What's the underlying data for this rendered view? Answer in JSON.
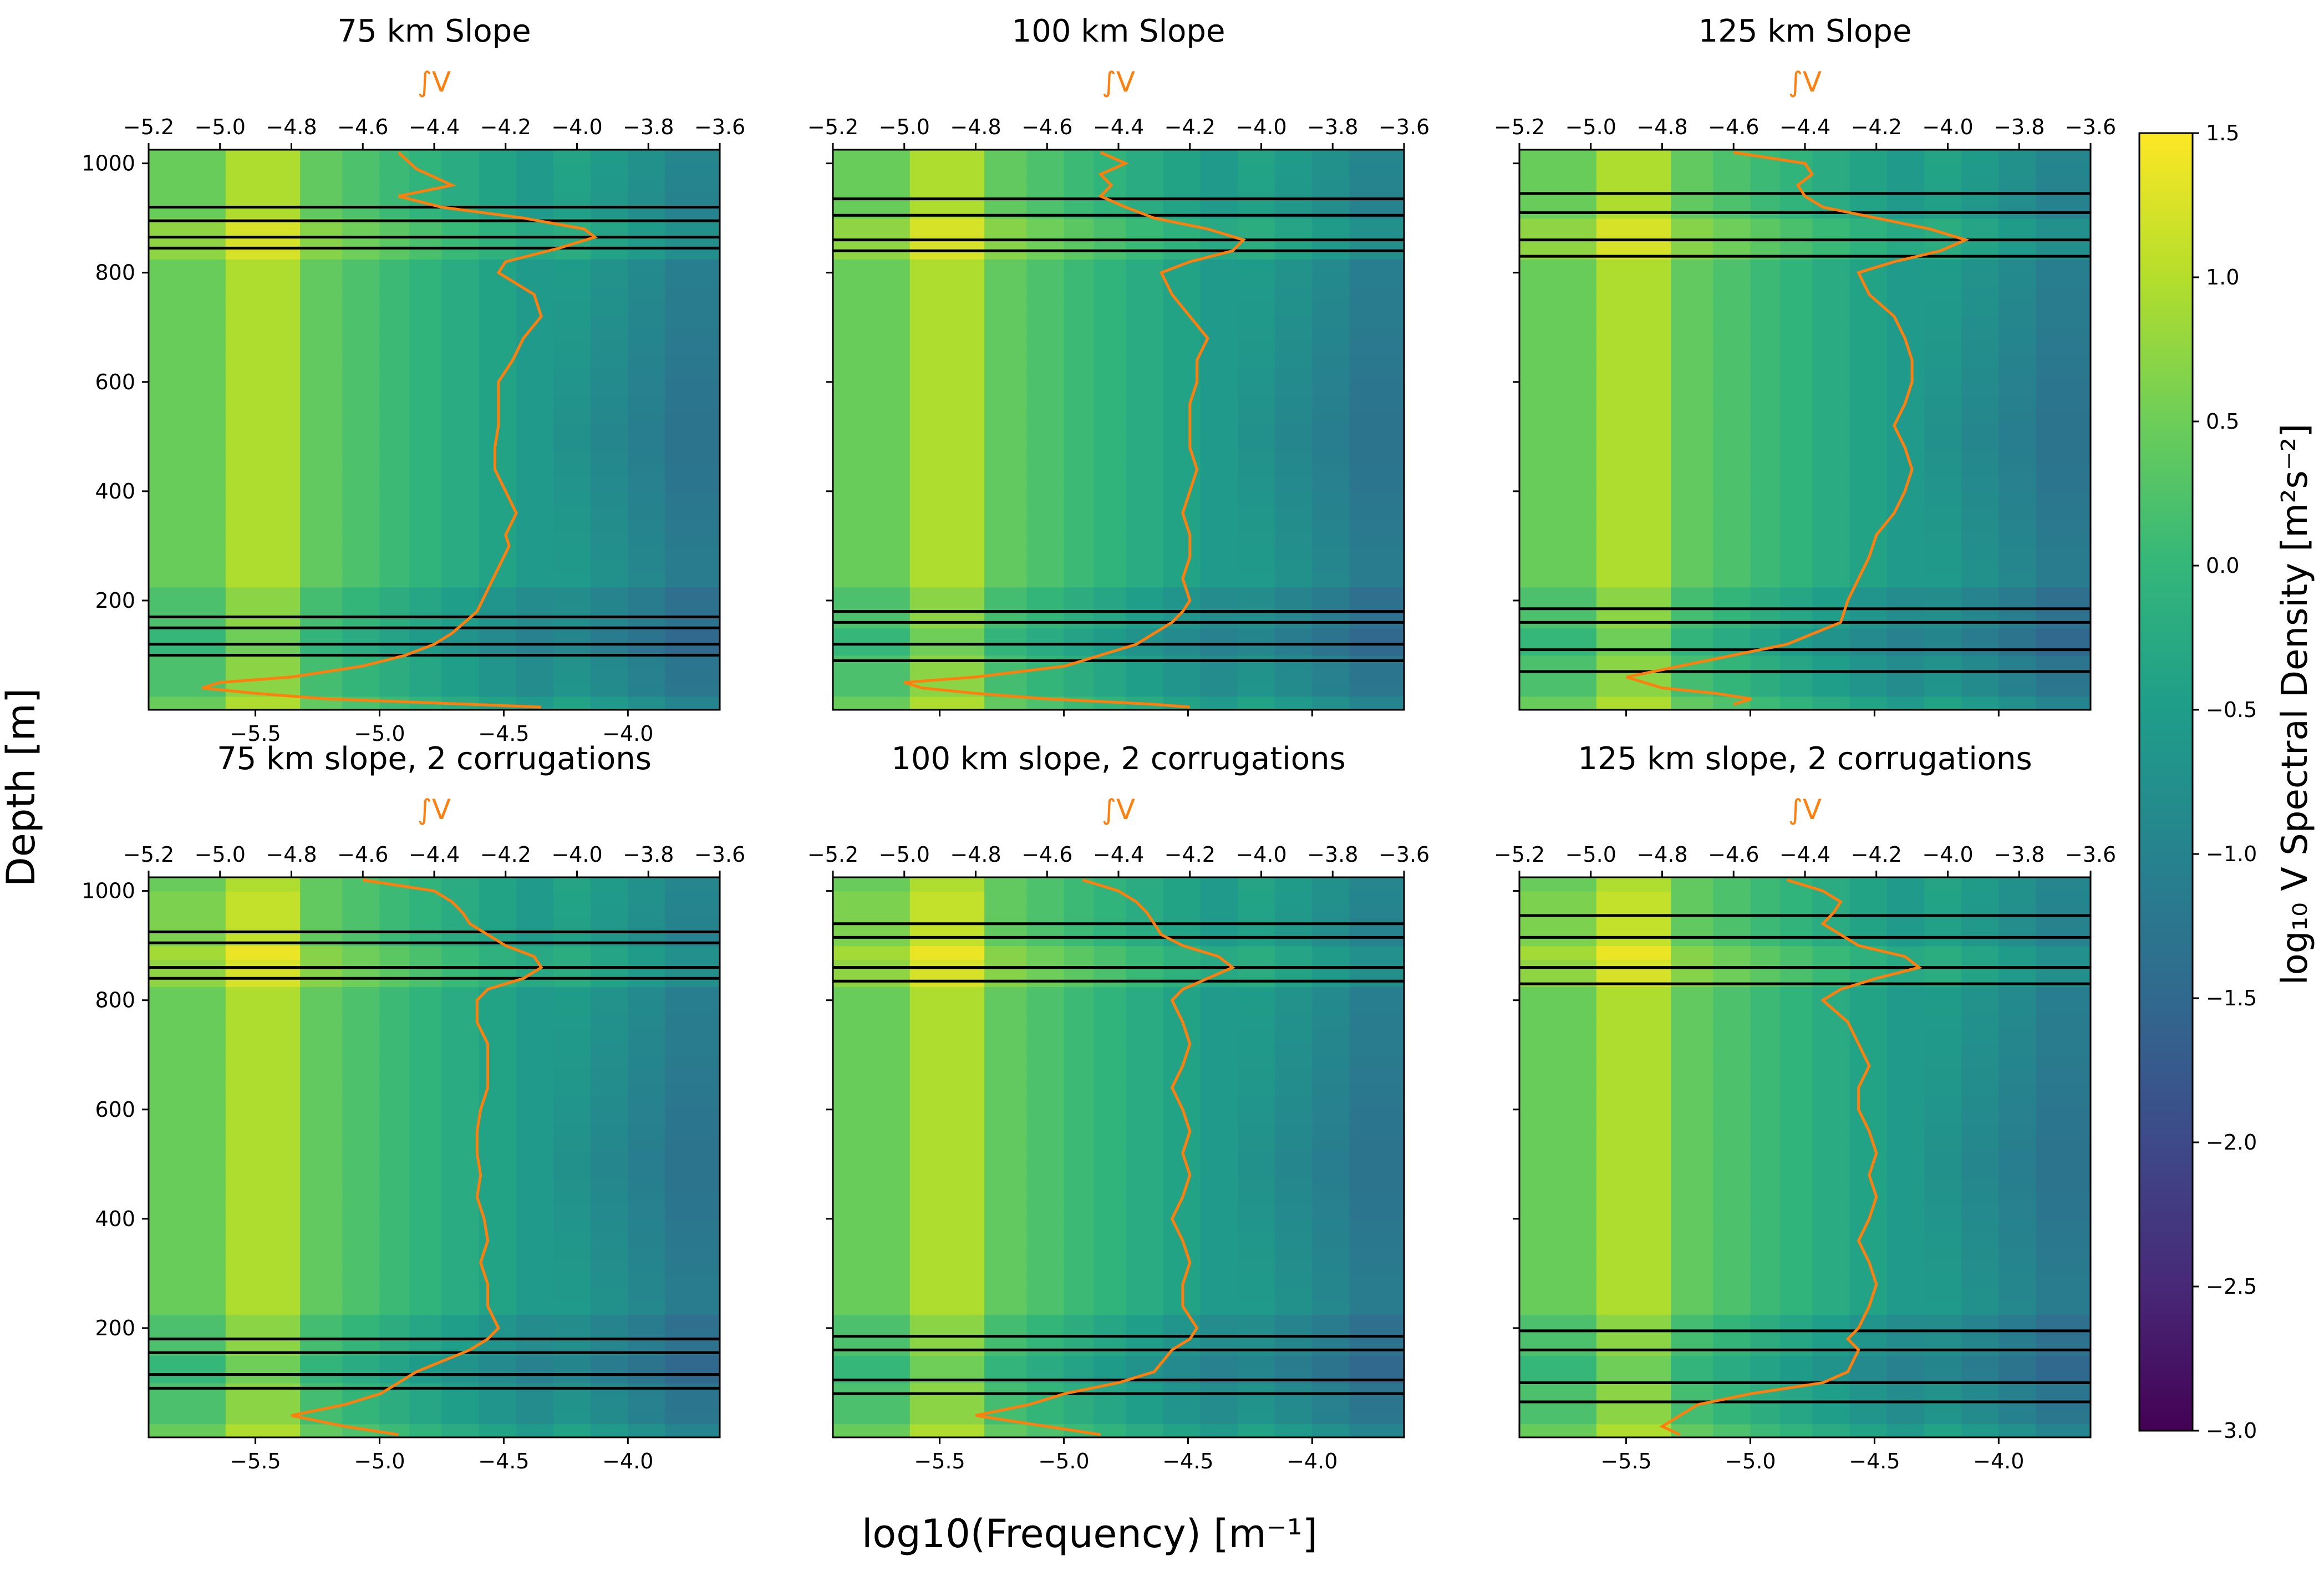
{
  "figure": {
    "ylabel": "Depth [m]",
    "xlabel": "log10(Frequency) [m⁻¹]"
  },
  "colorbar": {
    "label": "log₁₀ V Spectral Density [m²s⁻²]",
    "vmin": -3.0,
    "vmax": 1.5,
    "ticks": [
      "1.5",
      "1.0",
      "0.5",
      "0.0",
      "−0.5",
      "−1.0",
      "−1.5",
      "−2.0",
      "−2.5",
      "−3.0"
    ],
    "tick_values": [
      1.5,
      1.0,
      0.5,
      0.0,
      -0.5,
      -1.0,
      -1.5,
      -2.0,
      -2.5,
      -3.0
    ],
    "colormap": [
      "#440154",
      "#482878",
      "#3e4989",
      "#31688e",
      "#26828e",
      "#1f9e89",
      "#35b779",
      "#6ece58",
      "#b5de2b",
      "#fde725"
    ]
  },
  "chart_data": [
    {
      "type": "heatmap",
      "title": "75 km Slope",
      "top_axis_label": "∫V",
      "x_range": [
        -5.93,
        -3.63
      ],
      "y_range": [
        0,
        1025
      ],
      "top_x_range": [
        -5.2,
        -3.6
      ],
      "bottom_ticks": [
        "−5.5",
        "−5.0",
        "−4.5",
        "−4.0"
      ],
      "bottom_tick_values": [
        -5.5,
        -5.0,
        -4.5,
        -4.0
      ],
      "top_ticks": [
        "−5.2",
        "−5.0",
        "−4.8",
        "−4.6",
        "−4.4",
        "−4.2",
        "−4.0",
        "−3.8",
        "−3.6"
      ],
      "top_tick_values": [
        -5.2,
        -5.0,
        -4.8,
        -4.6,
        -4.4,
        -4.2,
        -4.0,
        -3.8,
        -3.6
      ],
      "y_ticks": [
        "1000",
        "800",
        "600",
        "400",
        "200"
      ],
      "y_tick_values": [
        1000,
        800,
        600,
        400,
        200
      ],
      "hlines": [
        920,
        895,
        865,
        845,
        170,
        150,
        120,
        100
      ],
      "integral_curve": {
        "depth": [
          1020,
          990,
          960,
          940,
          920,
          900,
          880,
          865,
          845,
          820,
          800,
          760,
          720,
          680,
          640,
          600,
          560,
          520,
          480,
          440,
          400,
          360,
          320,
          300,
          260,
          220,
          180,
          140,
          120,
          100,
          80,
          60,
          50,
          40,
          30,
          20,
          10,
          5
        ],
        "value": [
          -4.5,
          -4.45,
          -4.35,
          -4.5,
          -4.38,
          -4.15,
          -3.98,
          -3.95,
          -4.05,
          -4.2,
          -4.22,
          -4.12,
          -4.1,
          -4.15,
          -4.18,
          -4.22,
          -4.22,
          -4.22,
          -4.23,
          -4.23,
          -4.2,
          -4.17,
          -4.2,
          -4.19,
          -4.22,
          -4.25,
          -4.28,
          -4.35,
          -4.4,
          -4.48,
          -4.6,
          -4.8,
          -5.0,
          -5.05,
          -4.9,
          -4.7,
          -4.3,
          -4.1
        ]
      }
    },
    {
      "type": "heatmap",
      "title": "100 km Slope",
      "top_axis_label": "∫V",
      "x_range": [
        -5.93,
        -3.63
      ],
      "y_range": [
        0,
        1025
      ],
      "top_x_range": [
        -5.2,
        -3.6
      ],
      "bottom_ticks": [],
      "bottom_tick_values": [],
      "top_ticks": [
        "−5.2",
        "−5.0",
        "−4.8",
        "−4.6",
        "−4.4",
        "−4.2",
        "−4.0",
        "−3.8",
        "−3.6"
      ],
      "top_tick_values": [
        -5.2,
        -5.0,
        -4.8,
        -4.6,
        -4.4,
        -4.2,
        -4.0,
        -3.8,
        -3.6
      ],
      "y_ticks": [],
      "y_tick_values": [
        1000,
        800,
        600,
        400,
        200
      ],
      "hlines": [
        935,
        905,
        860,
        840,
        180,
        160,
        120,
        90
      ],
      "integral_curve": {
        "depth": [
          1020,
          1000,
          980,
          960,
          940,
          920,
          900,
          880,
          860,
          840,
          820,
          800,
          760,
          720,
          680,
          640,
          600,
          560,
          520,
          480,
          440,
          400,
          360,
          320,
          280,
          240,
          200,
          180,
          160,
          120,
          100,
          80,
          60,
          50,
          40,
          30,
          20,
          10,
          5
        ],
        "value": [
          -4.45,
          -4.38,
          -4.45,
          -4.42,
          -4.45,
          -4.38,
          -4.3,
          -4.15,
          -4.05,
          -4.08,
          -4.2,
          -4.28,
          -4.25,
          -4.2,
          -4.15,
          -4.18,
          -4.18,
          -4.2,
          -4.2,
          -4.2,
          -4.18,
          -4.2,
          -4.22,
          -4.2,
          -4.2,
          -4.22,
          -4.2,
          -4.22,
          -4.25,
          -4.35,
          -4.45,
          -4.55,
          -4.8,
          -5.0,
          -4.95,
          -4.8,
          -4.6,
          -4.3,
          -4.2
        ]
      }
    },
    {
      "type": "heatmap",
      "title": "125 km Slope",
      "top_axis_label": "∫V",
      "x_range": [
        -5.93,
        -3.63
      ],
      "y_range": [
        0,
        1025
      ],
      "top_x_range": [
        -5.2,
        -3.6
      ],
      "bottom_ticks": [],
      "bottom_tick_values": [],
      "top_ticks": [
        "−5.2",
        "−5.0",
        "−4.8",
        "−4.6",
        "−4.4",
        "−4.2",
        "−4.0",
        "−3.8",
        "−3.6"
      ],
      "top_tick_values": [
        -5.2,
        -5.0,
        -4.8,
        -4.6,
        -4.4,
        -4.2,
        -4.0,
        -3.8,
        -3.6
      ],
      "y_ticks": [],
      "y_tick_values": [
        1000,
        800,
        600,
        400,
        200
      ],
      "hlines": [
        945,
        910,
        860,
        830,
        185,
        160,
        110,
        70
      ],
      "integral_curve": {
        "depth": [
          1020,
          1000,
          980,
          960,
          940,
          920,
          900,
          880,
          860,
          840,
          820,
          800,
          760,
          720,
          680,
          640,
          600,
          560,
          520,
          480,
          440,
          400,
          360,
          320,
          280,
          240,
          200,
          160,
          120,
          100,
          80,
          60,
          40,
          30,
          20,
          10
        ],
        "value": [
          -4.6,
          -4.4,
          -4.38,
          -4.42,
          -4.4,
          -4.35,
          -4.2,
          -4.05,
          -3.95,
          -4.02,
          -4.15,
          -4.25,
          -4.22,
          -4.15,
          -4.12,
          -4.1,
          -4.1,
          -4.12,
          -4.15,
          -4.12,
          -4.1,
          -4.12,
          -4.15,
          -4.2,
          -4.22,
          -4.25,
          -4.28,
          -4.3,
          -4.45,
          -4.6,
          -4.75,
          -4.9,
          -4.8,
          -4.65,
          -4.55,
          -4.6
        ]
      }
    },
    {
      "type": "heatmap",
      "title": "75 km slope, 2 corrugations",
      "top_axis_label": "∫V",
      "x_range": [
        -5.93,
        -3.63
      ],
      "y_range": [
        0,
        1025
      ],
      "top_x_range": [
        -5.2,
        -3.6
      ],
      "bottom_ticks": [
        "−5.5",
        "−5.0",
        "−4.5",
        "−4.0"
      ],
      "bottom_tick_values": [
        -5.5,
        -5.0,
        -4.5,
        -4.0
      ],
      "top_ticks": [
        "−5.2",
        "−5.0",
        "−4.8",
        "−4.6",
        "−4.4",
        "−4.2",
        "−4.0",
        "−3.8",
        "−3.6"
      ],
      "top_tick_values": [
        -5.2,
        -5.0,
        -4.8,
        -4.6,
        -4.4,
        -4.2,
        -4.0,
        -3.8,
        -3.6
      ],
      "y_ticks": [
        "1000",
        "800",
        "600",
        "400",
        "200"
      ],
      "y_tick_values": [
        1000,
        800,
        600,
        400,
        200
      ],
      "hlines": [
        925,
        905,
        860,
        840,
        180,
        155,
        115,
        90
      ],
      "integral_curve": {
        "depth": [
          1020,
          1000,
          980,
          960,
          940,
          920,
          900,
          880,
          860,
          840,
          820,
          800,
          760,
          720,
          680,
          640,
          600,
          560,
          520,
          480,
          440,
          400,
          360,
          320,
          280,
          240,
          200,
          180,
          160,
          120,
          100,
          80,
          60,
          40,
          20,
          5
        ],
        "value": [
          -4.6,
          -4.4,
          -4.35,
          -4.32,
          -4.3,
          -4.25,
          -4.2,
          -4.12,
          -4.1,
          -4.15,
          -4.25,
          -4.28,
          -4.28,
          -4.25,
          -4.25,
          -4.25,
          -4.27,
          -4.28,
          -4.28,
          -4.27,
          -4.28,
          -4.26,
          -4.25,
          -4.27,
          -4.25,
          -4.25,
          -4.22,
          -4.25,
          -4.3,
          -4.45,
          -4.5,
          -4.55,
          -4.65,
          -4.8,
          -4.65,
          -4.5
        ]
      }
    },
    {
      "type": "heatmap",
      "title": "100 km slope, 2 corrugations",
      "top_axis_label": "∫V",
      "x_range": [
        -5.93,
        -3.63
      ],
      "y_range": [
        0,
        1025
      ],
      "top_x_range": [
        -5.2,
        -3.6
      ],
      "bottom_ticks": [
        "−5.5",
        "−5.0",
        "−4.5",
        "−4.0"
      ],
      "bottom_tick_values": [
        -5.5,
        -5.0,
        -4.5,
        -4.0
      ],
      "top_ticks": [
        "−5.2",
        "−5.0",
        "−4.8",
        "−4.6",
        "−4.4",
        "−4.2",
        "−4.0",
        "−3.8",
        "−3.6"
      ],
      "top_tick_values": [
        -5.2,
        -5.0,
        -4.8,
        -4.6,
        -4.4,
        -4.2,
        -4.0,
        -3.8,
        -3.6
      ],
      "y_ticks": [],
      "y_tick_values": [
        1000,
        800,
        600,
        400,
        200
      ],
      "hlines": [
        940,
        915,
        860,
        835,
        185,
        160,
        105,
        80
      ],
      "integral_curve": {
        "depth": [
          1020,
          1000,
          980,
          960,
          940,
          920,
          900,
          880,
          860,
          840,
          820,
          800,
          760,
          720,
          680,
          640,
          600,
          560,
          520,
          480,
          440,
          400,
          360,
          320,
          280,
          240,
          200,
          180,
          160,
          120,
          100,
          80,
          60,
          40,
          20,
          5
        ],
        "value": [
          -4.5,
          -4.4,
          -4.35,
          -4.32,
          -4.3,
          -4.28,
          -4.22,
          -4.12,
          -4.08,
          -4.15,
          -4.22,
          -4.25,
          -4.22,
          -4.2,
          -4.22,
          -4.25,
          -4.22,
          -4.2,
          -4.22,
          -4.2,
          -4.22,
          -4.25,
          -4.22,
          -4.2,
          -4.22,
          -4.22,
          -4.18,
          -4.2,
          -4.25,
          -4.3,
          -4.4,
          -4.55,
          -4.65,
          -4.8,
          -4.6,
          -4.45
        ]
      }
    },
    {
      "type": "heatmap",
      "title": "125 km slope, 2 corrugations",
      "top_axis_label": "∫V",
      "x_range": [
        -5.93,
        -3.63
      ],
      "y_range": [
        0,
        1025
      ],
      "top_x_range": [
        -5.2,
        -3.6
      ],
      "bottom_ticks": [
        "−5.5",
        "−5.0",
        "−4.5",
        "−4.0"
      ],
      "bottom_tick_values": [
        -5.5,
        -5.0,
        -4.5,
        -4.0
      ],
      "top_ticks": [
        "−5.2",
        "−5.0",
        "−4.8",
        "−4.6",
        "−4.4",
        "−4.2",
        "−4.0",
        "−3.8",
        "−3.6"
      ],
      "top_tick_values": [
        -5.2,
        -5.0,
        -4.8,
        -4.6,
        -4.4,
        -4.2,
        -4.0,
        -3.8,
        -3.6
      ],
      "y_ticks": [],
      "y_tick_values": [
        1000,
        800,
        600,
        400,
        200
      ],
      "hlines": [
        955,
        915,
        860,
        830,
        195,
        160,
        100,
        65
      ],
      "integral_curve": {
        "depth": [
          1020,
          1000,
          980,
          960,
          940,
          920,
          900,
          880,
          860,
          840,
          820,
          800,
          760,
          720,
          680,
          640,
          600,
          560,
          520,
          480,
          440,
          400,
          360,
          320,
          280,
          240,
          200,
          180,
          160,
          120,
          100,
          80,
          60,
          40,
          20,
          5
        ],
        "value": [
          -4.45,
          -4.35,
          -4.3,
          -4.32,
          -4.35,
          -4.3,
          -4.25,
          -4.12,
          -4.08,
          -4.2,
          -4.3,
          -4.35,
          -4.28,
          -4.25,
          -4.22,
          -4.25,
          -4.25,
          -4.22,
          -4.2,
          -4.22,
          -4.2,
          -4.22,
          -4.25,
          -4.22,
          -4.2,
          -4.22,
          -4.25,
          -4.28,
          -4.25,
          -4.28,
          -4.35,
          -4.55,
          -4.7,
          -4.75,
          -4.8,
          -4.75
        ]
      }
    }
  ]
}
